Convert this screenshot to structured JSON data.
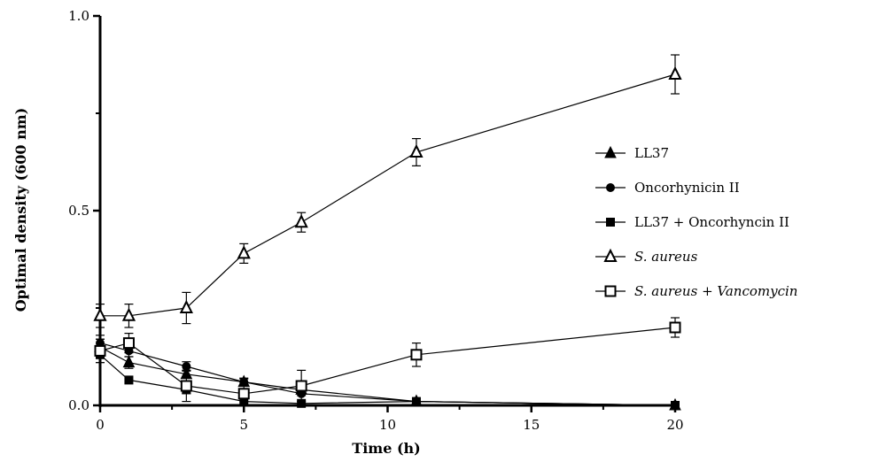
{
  "chart_data": {
    "type": "line",
    "title": "",
    "xlabel": "Time (h)",
    "ylabel": "Optimal density (600 nm)",
    "xlim": [
      0,
      20
    ],
    "ylim": [
      0,
      1.0
    ],
    "xticks": [
      0,
      5,
      10,
      15,
      20
    ],
    "xtick_labels": [
      "0",
      "5",
      "10",
      "15",
      "20"
    ],
    "yticks": [
      0,
      0.5,
      1.0
    ],
    "ytick_labels": [
      "0.0",
      "0.5",
      "1.0"
    ],
    "grid": false,
    "legend_position": "right",
    "series": [
      {
        "name": "LL37",
        "marker": "filled-triangle",
        "x": [
          0,
          1,
          3,
          5,
          7,
          11,
          20
        ],
        "y": [
          0.15,
          0.11,
          0.08,
          0.06,
          0.04,
          0.01,
          0.0
        ],
        "err": [
          0.02,
          0.015,
          0.01,
          0.01,
          0.01,
          0.0,
          0.0
        ]
      },
      {
        "name": "Oncorhynicin II",
        "marker": "filled-circle",
        "x": [
          0,
          1,
          3,
          5,
          7,
          11,
          20
        ],
        "y": [
          0.16,
          0.14,
          0.1,
          0.06,
          0.03,
          0.01,
          0.0
        ],
        "err": [
          0.02,
          0.015,
          0.012,
          0.008,
          0.005,
          0.0,
          0.0
        ]
      },
      {
        "name": "LL37 + Oncorhyncin II",
        "marker": "filled-square",
        "x": [
          0,
          1,
          3,
          5,
          7,
          11,
          20
        ],
        "y": [
          0.13,
          0.065,
          0.04,
          0.01,
          0.005,
          0.01,
          0.0
        ],
        "err": [
          0.02,
          0.0,
          0.01,
          0.0,
          0.0,
          0.0,
          0.0
        ]
      },
      {
        "name": "S. aureus",
        "marker": "open-triangle",
        "x": [
          0,
          1,
          3,
          5,
          7,
          11,
          20
        ],
        "y": [
          0.23,
          0.23,
          0.25,
          0.39,
          0.47,
          0.65,
          0.85
        ],
        "err": [
          0.03,
          0.03,
          0.04,
          0.025,
          0.025,
          0.035,
          0.05
        ]
      },
      {
        "name": "S. aureus + Vancomycin",
        "marker": "open-square",
        "x": [
          0,
          1,
          3,
          5,
          7,
          11,
          20
        ],
        "y": [
          0.14,
          0.16,
          0.05,
          0.03,
          0.05,
          0.13,
          0.2
        ],
        "err": [
          0.03,
          0.025,
          0.04,
          0.03,
          0.04,
          0.03,
          0.025
        ]
      }
    ],
    "legend": [
      {
        "text": "LL37",
        "italic": ""
      },
      {
        "text": "Oncorhynicin II",
        "italic": ""
      },
      {
        "text": "LL37 + Oncorhyncin II",
        "italic": ""
      },
      {
        "text": " aureus",
        "italic": "S.",
        "plain": ""
      },
      {
        "text": " + Vancomycin",
        "italic": "S. aureus"
      }
    ]
  }
}
